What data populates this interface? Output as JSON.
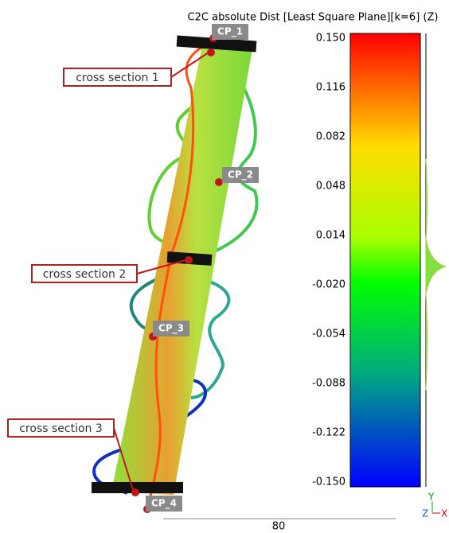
{
  "color_scale": {
    "title": "C2C absolute Dist [Least Square Plane][k=6] (Z)",
    "ticks": [
      "0.150",
      "0.116",
      "0.082",
      "0.048",
      "0.014",
      "-0.020",
      "-0.054",
      "-0.088",
      "-0.122",
      "-0.150"
    ]
  },
  "control_points": [
    "CP_1",
    "CP_2",
    "CP_3",
    "CP_4"
  ],
  "cross_sections": [
    "cross section 1",
    "cross section 2",
    "cross section 3"
  ],
  "scale_bar": "80",
  "axes": {
    "y": "Y",
    "z": "Z",
    "x": "X"
  }
}
